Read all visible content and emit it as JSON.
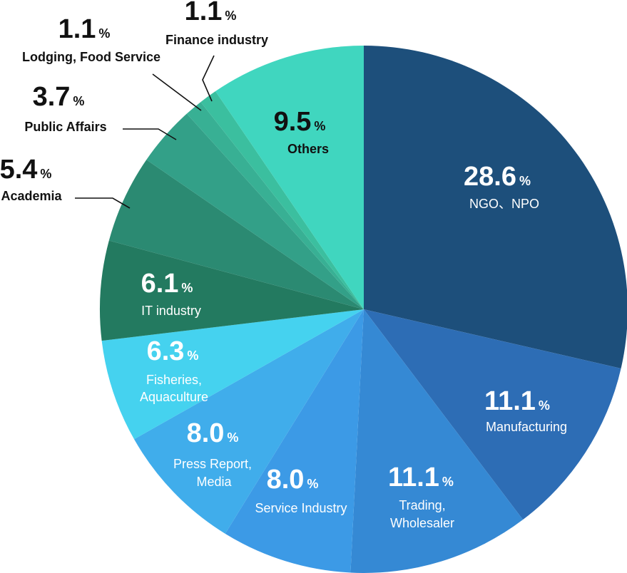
{
  "chart_data": {
    "type": "pie",
    "unit": "%",
    "start_angle_deg": 0,
    "direction": "clockwise",
    "slices": [
      {
        "label": "NGO、NPO",
        "value": 28.6,
        "value_text": "28.6",
        "color": "#1d4f7b"
      },
      {
        "label": "Manufacturing",
        "value": 11.1,
        "value_text": "11.1",
        "color": "#2d6db5"
      },
      {
        "label": "Trading, Wholesaler",
        "value": 11.1,
        "value_text": "11.1",
        "color": "#3589d4"
      },
      {
        "label": "Service Industry",
        "value": 8.0,
        "value_text": "8.0",
        "color": "#3c9ae6"
      },
      {
        "label": "Press Report, Media",
        "value": 8.0,
        "value_text": "8.0",
        "color": "#40adeb"
      },
      {
        "label": "Fisheries, Aquaculture",
        "value": 6.3,
        "value_text": "6.3",
        "color": "#45d2ef"
      },
      {
        "label": "IT industry",
        "value": 6.1,
        "value_text": "6.1",
        "color": "#237a60"
      },
      {
        "label": "Academia",
        "value": 5.4,
        "value_text": "5.4",
        "color": "#2b8a72"
      },
      {
        "label": "Public Affairs",
        "value": 3.7,
        "value_text": "3.7",
        "color": "#33a088"
      },
      {
        "label": "Lodging, Food Service",
        "value": 1.1,
        "value_text": "1.1",
        "color": "#38b094"
      },
      {
        "label": "Finance industry",
        "value": 1.1,
        "value_text": "1.1",
        "color": "#3bbf9f"
      },
      {
        "label": "Others",
        "value": 9.5,
        "value_text": "9.5",
        "color": "#40d6bf"
      }
    ]
  }
}
